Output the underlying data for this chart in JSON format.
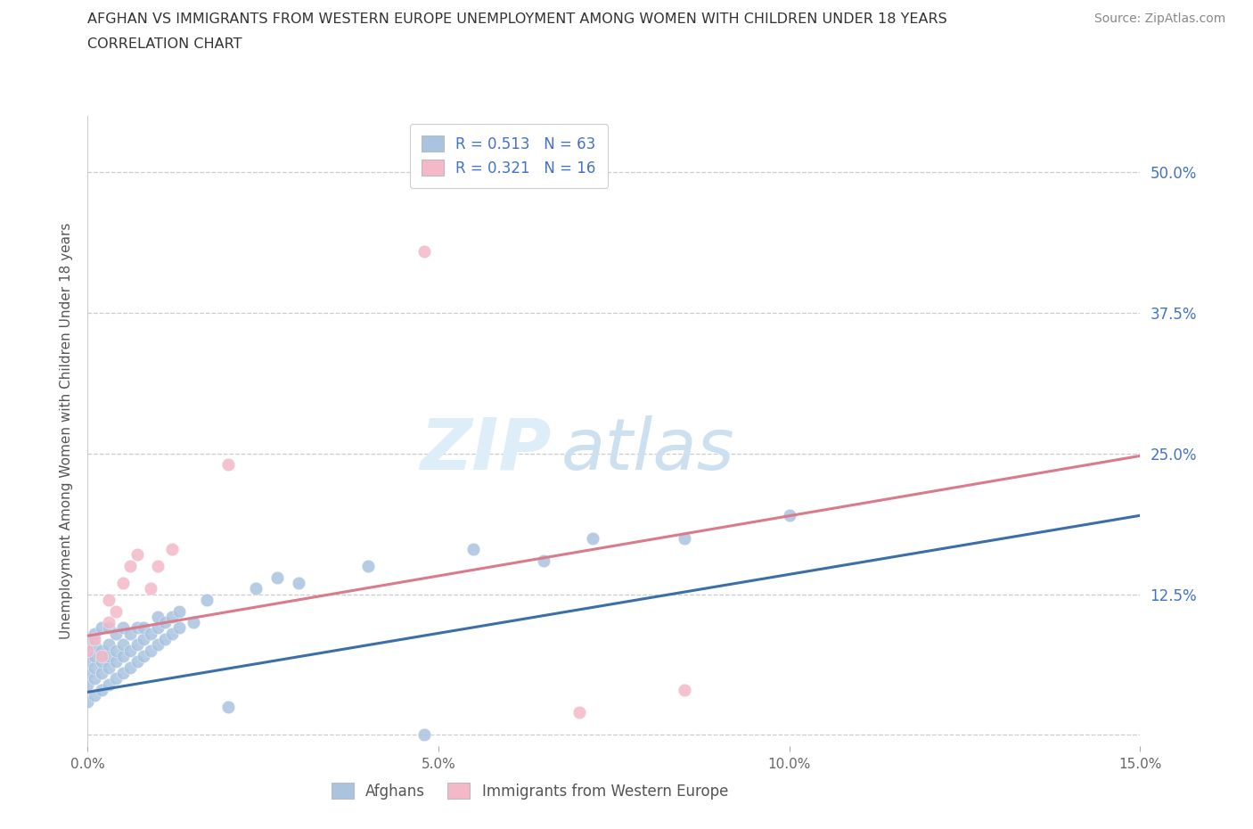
{
  "title_line1": "AFGHAN VS IMMIGRANTS FROM WESTERN EUROPE UNEMPLOYMENT AMONG WOMEN WITH CHILDREN UNDER 18 YEARS",
  "title_line2": "CORRELATION CHART",
  "source_text": "Source: ZipAtlas.com",
  "ylabel": "Unemployment Among Women with Children Under 18 years",
  "xlim": [
    0.0,
    0.15
  ],
  "ylim": [
    -0.01,
    0.55
  ],
  "yticks": [
    0.0,
    0.125,
    0.25,
    0.375,
    0.5
  ],
  "ytick_labels": [
    "",
    "12.5%",
    "25.0%",
    "37.5%",
    "50.0%"
  ],
  "xticks": [
    0.0,
    0.05,
    0.1,
    0.15
  ],
  "xtick_labels": [
    "0.0%",
    "5.0%",
    "10.0%",
    "15.0%"
  ],
  "blue_R": 0.513,
  "blue_N": 63,
  "pink_R": 0.321,
  "pink_N": 16,
  "blue_color": "#aac4e0",
  "pink_color": "#f4b8c8",
  "blue_line_color": "#3a6fa8",
  "pink_line_color": "#d97b8a",
  "label_blue": "Afghans",
  "label_pink": "Immigrants from Western Europe",
  "blue_line_x": [
    0.0,
    0.15
  ],
  "blue_line_y": [
    0.038,
    0.195
  ],
  "pink_line_x": [
    0.0,
    0.15
  ],
  "pink_line_y": [
    0.088,
    0.248
  ],
  "blue_points_x": [
    0.0,
    0.0,
    0.0,
    0.0,
    0.0,
    0.0,
    0.001,
    0.001,
    0.001,
    0.001,
    0.001,
    0.001,
    0.002,
    0.002,
    0.002,
    0.002,
    0.002,
    0.003,
    0.003,
    0.003,
    0.003,
    0.003,
    0.004,
    0.004,
    0.004,
    0.004,
    0.005,
    0.005,
    0.005,
    0.005,
    0.006,
    0.006,
    0.006,
    0.007,
    0.007,
    0.007,
    0.008,
    0.008,
    0.008,
    0.009,
    0.009,
    0.01,
    0.01,
    0.01,
    0.011,
    0.011,
    0.012,
    0.012,
    0.013,
    0.013,
    0.015,
    0.017,
    0.02,
    0.024,
    0.027,
    0.03,
    0.04,
    0.048,
    0.055,
    0.065,
    0.072,
    0.085,
    0.1
  ],
  "blue_points_y": [
    0.03,
    0.045,
    0.055,
    0.065,
    0.075,
    0.085,
    0.035,
    0.05,
    0.06,
    0.07,
    0.08,
    0.09,
    0.04,
    0.055,
    0.065,
    0.075,
    0.095,
    0.045,
    0.06,
    0.07,
    0.08,
    0.095,
    0.05,
    0.065,
    0.075,
    0.09,
    0.055,
    0.07,
    0.08,
    0.095,
    0.06,
    0.075,
    0.09,
    0.065,
    0.08,
    0.095,
    0.07,
    0.085,
    0.095,
    0.075,
    0.09,
    0.08,
    0.095,
    0.105,
    0.085,
    0.1,
    0.09,
    0.105,
    0.095,
    0.11,
    0.1,
    0.12,
    0.025,
    0.13,
    0.14,
    0.135,
    0.15,
    0.0,
    0.165,
    0.155,
    0.175,
    0.175,
    0.195
  ],
  "pink_points_x": [
    0.0,
    0.001,
    0.002,
    0.003,
    0.003,
    0.004,
    0.005,
    0.006,
    0.007,
    0.009,
    0.01,
    0.012,
    0.02,
    0.048,
    0.07,
    0.085
  ],
  "pink_points_y": [
    0.075,
    0.085,
    0.07,
    0.1,
    0.12,
    0.11,
    0.135,
    0.15,
    0.16,
    0.13,
    0.15,
    0.165,
    0.24,
    0.43,
    0.02,
    0.04
  ]
}
